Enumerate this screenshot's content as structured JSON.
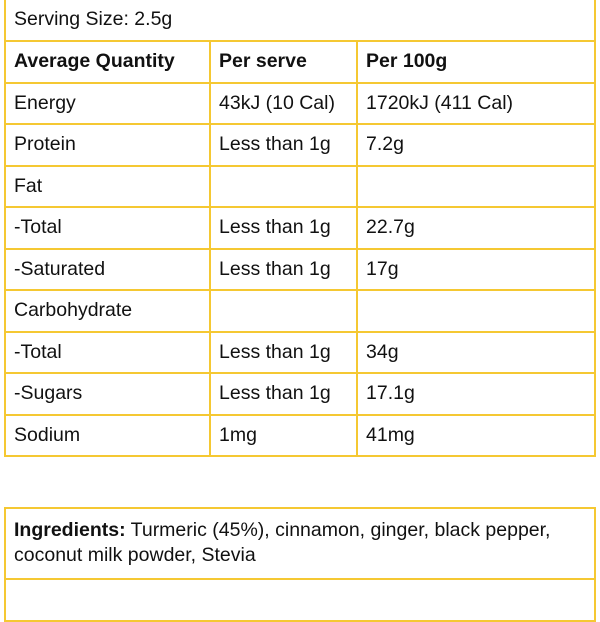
{
  "serving_size": "Serving Size: 2.5g",
  "headers": {
    "quantity": "Average Quantity",
    "per_serve": "Per serve",
    "per_100g": "Per 100g"
  },
  "rows": [
    {
      "name": "Energy",
      "per_serve": "43kJ (10 Cal)",
      "per_100g": "1720kJ (411 Cal)"
    },
    {
      "name": "Protein",
      "per_serve": "Less than 1g",
      "per_100g": "7.2g"
    },
    {
      "name": "Fat",
      "per_serve": "",
      "per_100g": ""
    },
    {
      "name": "-Total",
      "per_serve": "Less than 1g",
      "per_100g": "22.7g"
    },
    {
      "name": "-Saturated",
      "per_serve": "Less than 1g",
      "per_100g": "17g"
    },
    {
      "name": "Carbohydrate",
      "per_serve": "",
      "per_100g": ""
    },
    {
      "name": "-Total",
      "per_serve": "Less than 1g",
      "per_100g": "34g"
    },
    {
      "name": "-Sugars",
      "per_serve": "Less than 1g",
      "per_100g": "17.1g"
    },
    {
      "name": "Sodium",
      "per_serve": "1mg",
      "per_100g": "41mg"
    }
  ],
  "ingredients": {
    "label": "Ingredients:",
    "text": " Turmeric (45%), cinnamon, ginger, black pepper, coconut milk powder, Stevia"
  },
  "colors": {
    "border": "#f5c832"
  }
}
